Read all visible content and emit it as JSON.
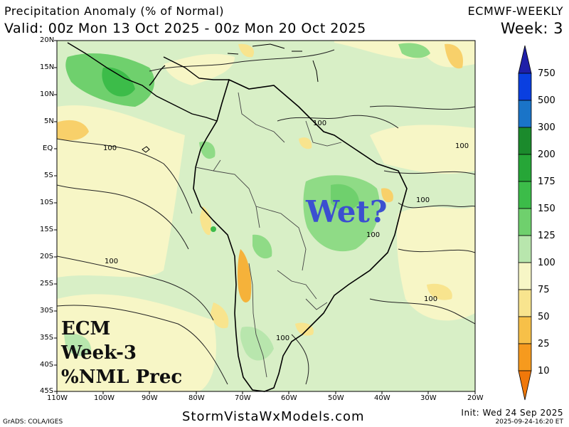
{
  "header": {
    "title": "Precipitation Anomaly (% of Normal)",
    "valid": "Valid: 00z Mon 13 Oct 2025 - 00z Mon 20 Oct 2025",
    "model": "ECMWF-WEEKLY",
    "week": "Week: 3"
  },
  "map": {
    "lon_range": [
      -110,
      -20
    ],
    "lat_range": [
      -45,
      20
    ],
    "lat_ticks": [
      "20N",
      "15N",
      "10N",
      "5N",
      "EQ",
      "5S",
      "10S",
      "15S",
      "20S",
      "25S",
      "30S",
      "35S",
      "40S",
      "45S"
    ],
    "lon_ticks": [
      "110W",
      "100W",
      "90W",
      "80W",
      "70W",
      "60W",
      "50W",
      "40W",
      "30W",
      "20W"
    ],
    "contour_labels": [
      "100",
      "100",
      "100",
      "100",
      "100",
      "100",
      "100",
      "100"
    ]
  },
  "colorbar": {
    "levels": [
      "750",
      "500",
      "300",
      "200",
      "175",
      "150",
      "125",
      "100",
      "75",
      "50",
      "25",
      "10"
    ],
    "colors": [
      "#1f1fa8",
      "#0a3fe0",
      "#1a74c8",
      "#1b8a2c",
      "#26a637",
      "#3cbc49",
      "#6fd06d",
      "#b8e6ad",
      "#f7f6c6",
      "#f8e48e",
      "#f7c048",
      "#f69a1e",
      "#f0780a"
    ]
  },
  "overlay": {
    "line1": "ECM",
    "line2": "Week-3",
    "line3": "%NML Prec",
    "annotation": "Wet?"
  },
  "footer": {
    "site": "StormVistaWxModels.com",
    "grads": "GrADS: COLA/IGES",
    "init": "Init: Wed 24 Sep 2025",
    "stamp": "2025-09-24-16:20 ET"
  }
}
